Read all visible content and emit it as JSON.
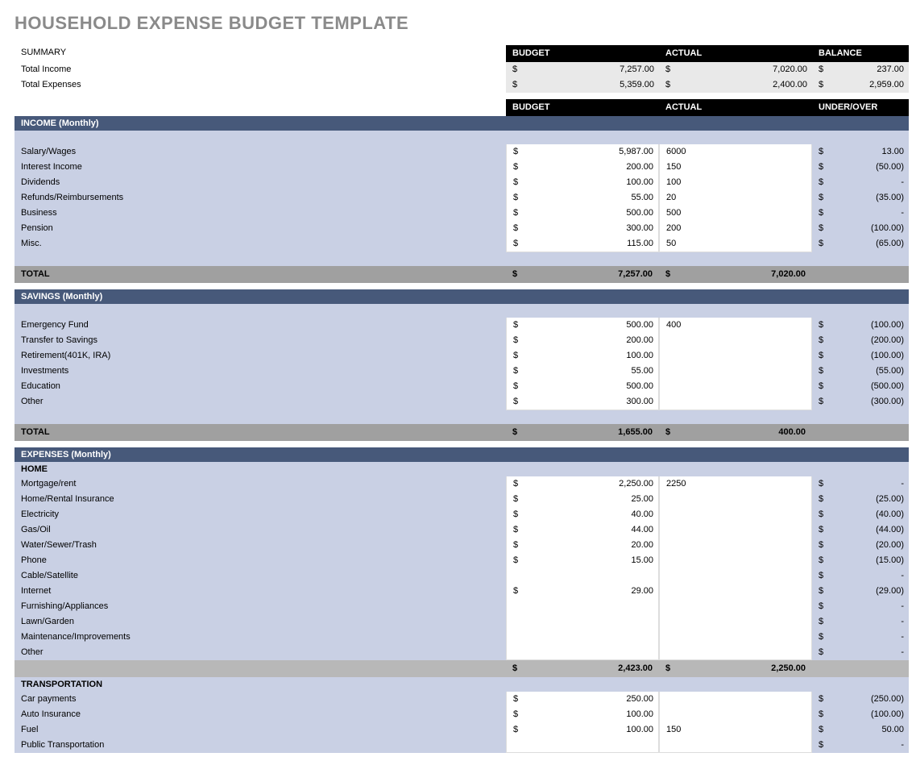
{
  "title": "HOUSEHOLD EXPENSE BUDGET TEMPLATE",
  "summary": {
    "heading": "SUMMARY",
    "headers": {
      "budget": "BUDGET",
      "actual": "ACTUAL",
      "balance": "BALANCE"
    },
    "rows": [
      {
        "label": "Total Income",
        "budget": "7,257.00",
        "actual": "7,020.00",
        "balance": "237.00"
      },
      {
        "label": "Total Expenses",
        "budget": "5,359.00",
        "actual": "2,400.00",
        "balance": "2,959.00"
      }
    ]
  },
  "section_headers": {
    "budget": "BUDGET",
    "actual": "ACTUAL",
    "under_over": "UNDER/OVER"
  },
  "income": {
    "title": "INCOME (Monthly)",
    "rows": [
      {
        "label": "Salary/Wages",
        "budget": "5,987.00",
        "actual": "6000",
        "uo": "13.00"
      },
      {
        "label": "Interest Income",
        "budget": "200.00",
        "actual": "150",
        "uo": "(50.00)"
      },
      {
        "label": "Dividends",
        "budget": "100.00",
        "actual": "100",
        "uo": "-"
      },
      {
        "label": "Refunds/Reimbursements",
        "budget": "55.00",
        "actual": "20",
        "uo": "(35.00)"
      },
      {
        "label": "Business",
        "budget": "500.00",
        "actual": "500",
        "uo": "-"
      },
      {
        "label": "Pension",
        "budget": "300.00",
        "actual": "200",
        "uo": "(100.00)"
      },
      {
        "label": "Misc.",
        "budget": "115.00",
        "actual": "50",
        "uo": "(65.00)"
      }
    ],
    "total": {
      "label": "TOTAL",
      "budget": "7,257.00",
      "actual": "7,020.00"
    }
  },
  "savings": {
    "title": "SAVINGS (Monthly)",
    "rows": [
      {
        "label": "Emergency Fund",
        "budget": "500.00",
        "actual": "400",
        "uo": "(100.00)"
      },
      {
        "label": "Transfer to Savings",
        "budget": "200.00",
        "actual": "",
        "uo": "(200.00)"
      },
      {
        "label": "Retirement(401K, IRA)",
        "budget": "100.00",
        "actual": "",
        "uo": "(100.00)"
      },
      {
        "label": "Investments",
        "budget": "55.00",
        "actual": "",
        "uo": "(55.00)"
      },
      {
        "label": "Education",
        "budget": "500.00",
        "actual": "",
        "uo": "(500.00)"
      },
      {
        "label": "Other",
        "budget": "300.00",
        "actual": "",
        "uo": "(300.00)"
      }
    ],
    "total": {
      "label": "TOTAL",
      "budget": "1,655.00",
      "actual": "400.00"
    }
  },
  "expenses": {
    "title": "EXPENSES (Monthly)",
    "home": {
      "title": "HOME",
      "rows": [
        {
          "label": "Mortgage/rent",
          "budget": "2,250.00",
          "actual": "2250",
          "uo": "-"
        },
        {
          "label": "Home/Rental Insurance",
          "budget": "25.00",
          "actual": "",
          "uo": "(25.00)"
        },
        {
          "label": "Electricity",
          "budget": "40.00",
          "actual": "",
          "uo": "(40.00)"
        },
        {
          "label": "Gas/Oil",
          "budget": "44.00",
          "actual": "",
          "uo": "(44.00)"
        },
        {
          "label": "Water/Sewer/Trash",
          "budget": "20.00",
          "actual": "",
          "uo": "(20.00)"
        },
        {
          "label": "Phone",
          "budget": "15.00",
          "actual": "",
          "uo": "(15.00)"
        },
        {
          "label": "Cable/Satellite",
          "budget": "",
          "actual": "",
          "uo": "-"
        },
        {
          "label": "Internet",
          "budget": "29.00",
          "actual": "",
          "uo": "(29.00)"
        },
        {
          "label": "Furnishing/Appliances",
          "budget": "",
          "actual": "",
          "uo": "-"
        },
        {
          "label": "Lawn/Garden",
          "budget": "",
          "actual": "",
          "uo": "-"
        },
        {
          "label": "Maintenance/Improvements",
          "budget": "",
          "actual": "",
          "uo": "-"
        },
        {
          "label": "Other",
          "budget": "",
          "actual": "",
          "uo": "-"
        }
      ],
      "subtotal": {
        "budget": "2,423.00",
        "actual": "2,250.00"
      }
    },
    "transportation": {
      "title": "TRANSPORTATION",
      "rows": [
        {
          "label": "Car payments",
          "budget": "250.00",
          "actual": "",
          "uo": "(250.00)"
        },
        {
          "label": "Auto Insurance",
          "budget": "100.00",
          "actual": "",
          "uo": "(100.00)"
        },
        {
          "label": "Fuel",
          "budget": "100.00",
          "actual": "150",
          "uo": "50.00"
        },
        {
          "label": "Public Transportation",
          "budget": "",
          "actual": "",
          "uo": "-"
        }
      ]
    }
  },
  "colors": {
    "header_bar": "#000000",
    "section_bar": "#47597a",
    "body_bg": "#c9d0e4",
    "total_bar": "#a0a0a0",
    "subtotal_bar": "#b8b8b8",
    "summary_bg": "#e9e9e9"
  }
}
